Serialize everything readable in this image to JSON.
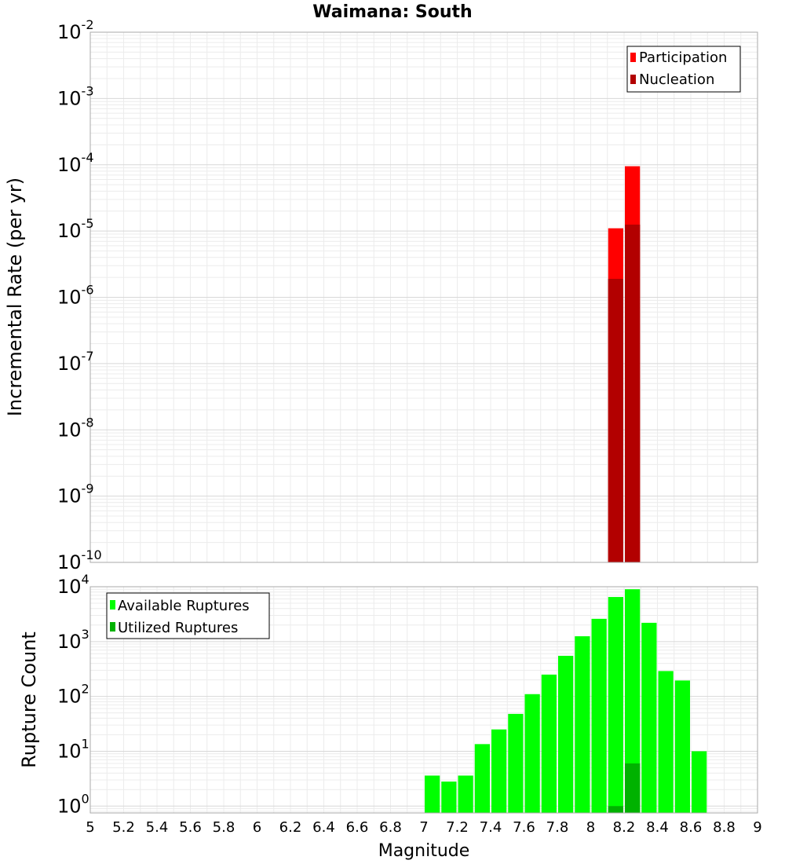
{
  "chart_data": [
    {
      "type": "bar",
      "title": "Waimana: South",
      "xlabel": "",
      "ylabel": "Incremental Rate (per yr)",
      "yscale": "log",
      "ylim": [
        1e-10,
        0.01
      ],
      "xlim": [
        5,
        9
      ],
      "grid": true,
      "legend_position": "top-right",
      "yticks": [
        {
          "base": "10",
          "exp": "-10"
        },
        {
          "base": "10",
          "exp": "-9"
        },
        {
          "base": "10",
          "exp": "-8"
        },
        {
          "base": "10",
          "exp": "-7"
        },
        {
          "base": "10",
          "exp": "-6"
        },
        {
          "base": "10",
          "exp": "-5"
        },
        {
          "base": "10",
          "exp": "-4"
        },
        {
          "base": "10",
          "exp": "-3"
        },
        {
          "base": "10",
          "exp": "-2"
        }
      ],
      "series": [
        {
          "name": "Participation",
          "color": "#ff0000",
          "points": [
            {
              "x": 8.15,
              "y": 1.1e-05
            },
            {
              "x": 8.25,
              "y": 9.5e-05
            }
          ]
        },
        {
          "name": "Nucleation",
          "color": "#b20000",
          "points": [
            {
              "x": 8.15,
              "y": 1.9e-06
            },
            {
              "x": 8.25,
              "y": 1.25e-05
            }
          ]
        }
      ]
    },
    {
      "type": "bar",
      "title": "",
      "xlabel": "Magnitude",
      "ylabel": "Rupture Count",
      "yscale": "log",
      "ylim": [
        0.75,
        10000
      ],
      "xlim": [
        5,
        9
      ],
      "grid": true,
      "legend_position": "top-left",
      "yticks": [
        {
          "base": "10",
          "exp": "0"
        },
        {
          "base": "10",
          "exp": "1"
        },
        {
          "base": "10",
          "exp": "2"
        },
        {
          "base": "10",
          "exp": "3"
        },
        {
          "base": "10",
          "exp": "4"
        }
      ],
      "xticks": [
        "5",
        "5.2",
        "5.4",
        "5.6",
        "5.8",
        "6",
        "6.2",
        "6.4",
        "6.6",
        "6.8",
        "7",
        "7.2",
        "7.4",
        "7.6",
        "7.8",
        "8",
        "8.2",
        "8.4",
        "8.6",
        "8.8",
        "9"
      ],
      "series": [
        {
          "name": "Available Ruptures",
          "color": "#00ff00",
          "points": [
            {
              "x": 7.05,
              "y": 3.6
            },
            {
              "x": 7.15,
              "y": 2.8
            },
            {
              "x": 7.25,
              "y": 3.6
            },
            {
              "x": 7.35,
              "y": 13.5
            },
            {
              "x": 7.45,
              "y": 25
            },
            {
              "x": 7.55,
              "y": 48
            },
            {
              "x": 7.65,
              "y": 110
            },
            {
              "x": 7.75,
              "y": 250
            },
            {
              "x": 7.85,
              "y": 550
            },
            {
              "x": 7.95,
              "y": 1250
            },
            {
              "x": 8.05,
              "y": 2600
            },
            {
              "x": 8.15,
              "y": 6500
            },
            {
              "x": 8.25,
              "y": 9000
            },
            {
              "x": 8.35,
              "y": 2200
            },
            {
              "x": 8.45,
              "y": 290
            },
            {
              "x": 8.55,
              "y": 195
            },
            {
              "x": 8.65,
              "y": 10
            }
          ]
        },
        {
          "name": "Utilized Ruptures",
          "color": "#00b200",
          "points": [
            {
              "x": 8.15,
              "y": 1
            },
            {
              "x": 8.25,
              "y": 6
            }
          ]
        }
      ]
    }
  ]
}
